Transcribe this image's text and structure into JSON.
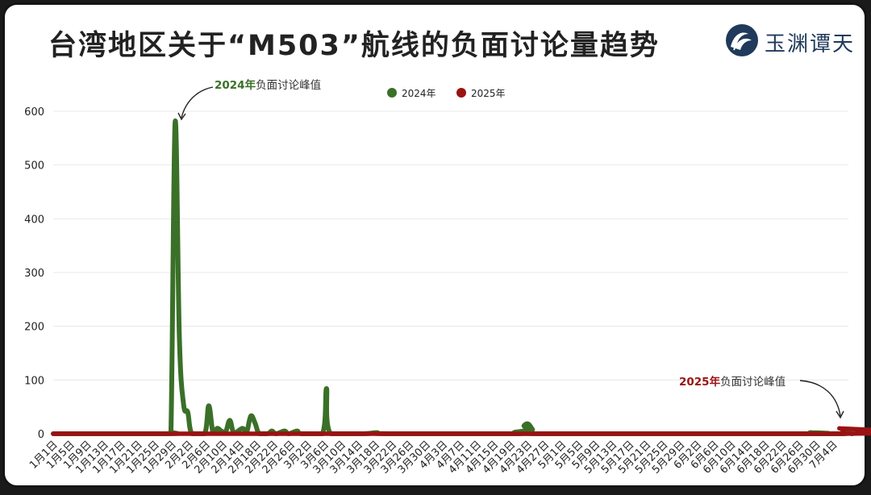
{
  "title": "台湾地区关于“M503”航线的负面讨论量趋势",
  "logo": {
    "text": "玉渊谭天",
    "icon": "wave-seal-icon",
    "color": "#1f3a5a"
  },
  "colors": {
    "series_2024": "#3a7028",
    "series_2025": "#9b1212",
    "grid": "#e8e8e8",
    "axis": "#222222"
  },
  "chart_data": {
    "type": "line",
    "title": "台湾地区关于“M503”航线的负面讨论量趋势",
    "xlabel": "",
    "ylabel": "",
    "ylim": [
      0,
      600
    ],
    "yticks": [
      0,
      100,
      200,
      300,
      400,
      500,
      600
    ],
    "grid": true,
    "legend_position": "top-center",
    "x": [
      "1月1日",
      "1月5日",
      "1月9日",
      "1月13日",
      "1月17日",
      "1月21日",
      "1月25日",
      "1月29日",
      "2月2日",
      "2月6日",
      "2月10日",
      "2月14日",
      "2月18日",
      "2月22日",
      "2月26日",
      "3月2日",
      "3月6日",
      "3月10日",
      "3月14日",
      "3月18日",
      "3月22日",
      "3月26日",
      "3月30日",
      "4月3日",
      "4月7日",
      "4月11日",
      "4月15日",
      "4月19日",
      "4月23日",
      "4月27日",
      "5月1日",
      "5月5日",
      "5月9日",
      "5月13日",
      "5月17日",
      "5月21日",
      "5月25日",
      "5月29日",
      "6月2日",
      "6月6日",
      "6月10日",
      "6月14日",
      "6月18日",
      "6月22日",
      "6月26日",
      "6月30日",
      "7月4日"
    ],
    "series": [
      {
        "name": "2024年",
        "color": "#3a7028",
        "points": [
          {
            "d": 1,
            "v": 0
          },
          {
            "d": 28,
            "v": 0
          },
          {
            "d": 29,
            "v": 5
          },
          {
            "d": 30,
            "v": 580
          },
          {
            "d": 31,
            "v": 180
          },
          {
            "d": 32,
            "v": 55
          },
          {
            "d": 33,
            "v": 40
          },
          {
            "d": 34,
            "v": 0
          },
          {
            "d": 37,
            "v": 0
          },
          {
            "d": 38,
            "v": 52
          },
          {
            "d": 39,
            "v": 2
          },
          {
            "d": 40,
            "v": 10
          },
          {
            "d": 41,
            "v": 5
          },
          {
            "d": 42,
            "v": 3
          },
          {
            "d": 43,
            "v": 25
          },
          {
            "d": 44,
            "v": 2
          },
          {
            "d": 46,
            "v": 10
          },
          {
            "d": 47,
            "v": 3
          },
          {
            "d": 48,
            "v": 33
          },
          {
            "d": 49,
            "v": 20
          },
          {
            "d": 50,
            "v": 0
          },
          {
            "d": 52,
            "v": 0
          },
          {
            "d": 53,
            "v": 5
          },
          {
            "d": 54,
            "v": 0
          },
          {
            "d": 56,
            "v": 5
          },
          {
            "d": 57,
            "v": 0
          },
          {
            "d": 59,
            "v": 5
          },
          {
            "d": 60,
            "v": 0
          },
          {
            "d": 65,
            "v": 0
          },
          {
            "d": 66,
            "v": 84
          },
          {
            "d": 67,
            "v": 0
          },
          {
            "d": 75,
            "v": 0
          },
          {
            "d": 78,
            "v": 2
          },
          {
            "d": 81,
            "v": 0
          },
          {
            "d": 112,
            "v": 0
          },
          {
            "d": 113,
            "v": 15
          },
          {
            "d": 114,
            "v": 18
          },
          {
            "d": 115,
            "v": 8
          },
          {
            "d": 116,
            "v": 0
          },
          {
            "d": 180,
            "v": 0
          },
          {
            "d": 181,
            "v": 2
          },
          {
            "d": 182,
            "v": 0
          },
          {
            "d": 189,
            "v": 0
          },
          {
            "d": 190,
            "v": 2
          },
          {
            "d": 191,
            "v": 0
          },
          {
            "d": 191,
            "v": 0
          }
        ]
      },
      {
        "name": "2025年",
        "color": "#9b1212",
        "points": [
          {
            "d": 1,
            "v": 0
          },
          {
            "d": 187,
            "v": 0
          },
          {
            "d": 188,
            "v": 10
          },
          {
            "d": 189,
            "v": 5
          }
        ]
      }
    ],
    "annotations": [
      {
        "year": "2024年",
        "text": "负面讨论峰值",
        "color": "#3a7028"
      },
      {
        "year": "2025年",
        "text": "负面讨论峰值",
        "color": "#9b1212"
      }
    ]
  }
}
